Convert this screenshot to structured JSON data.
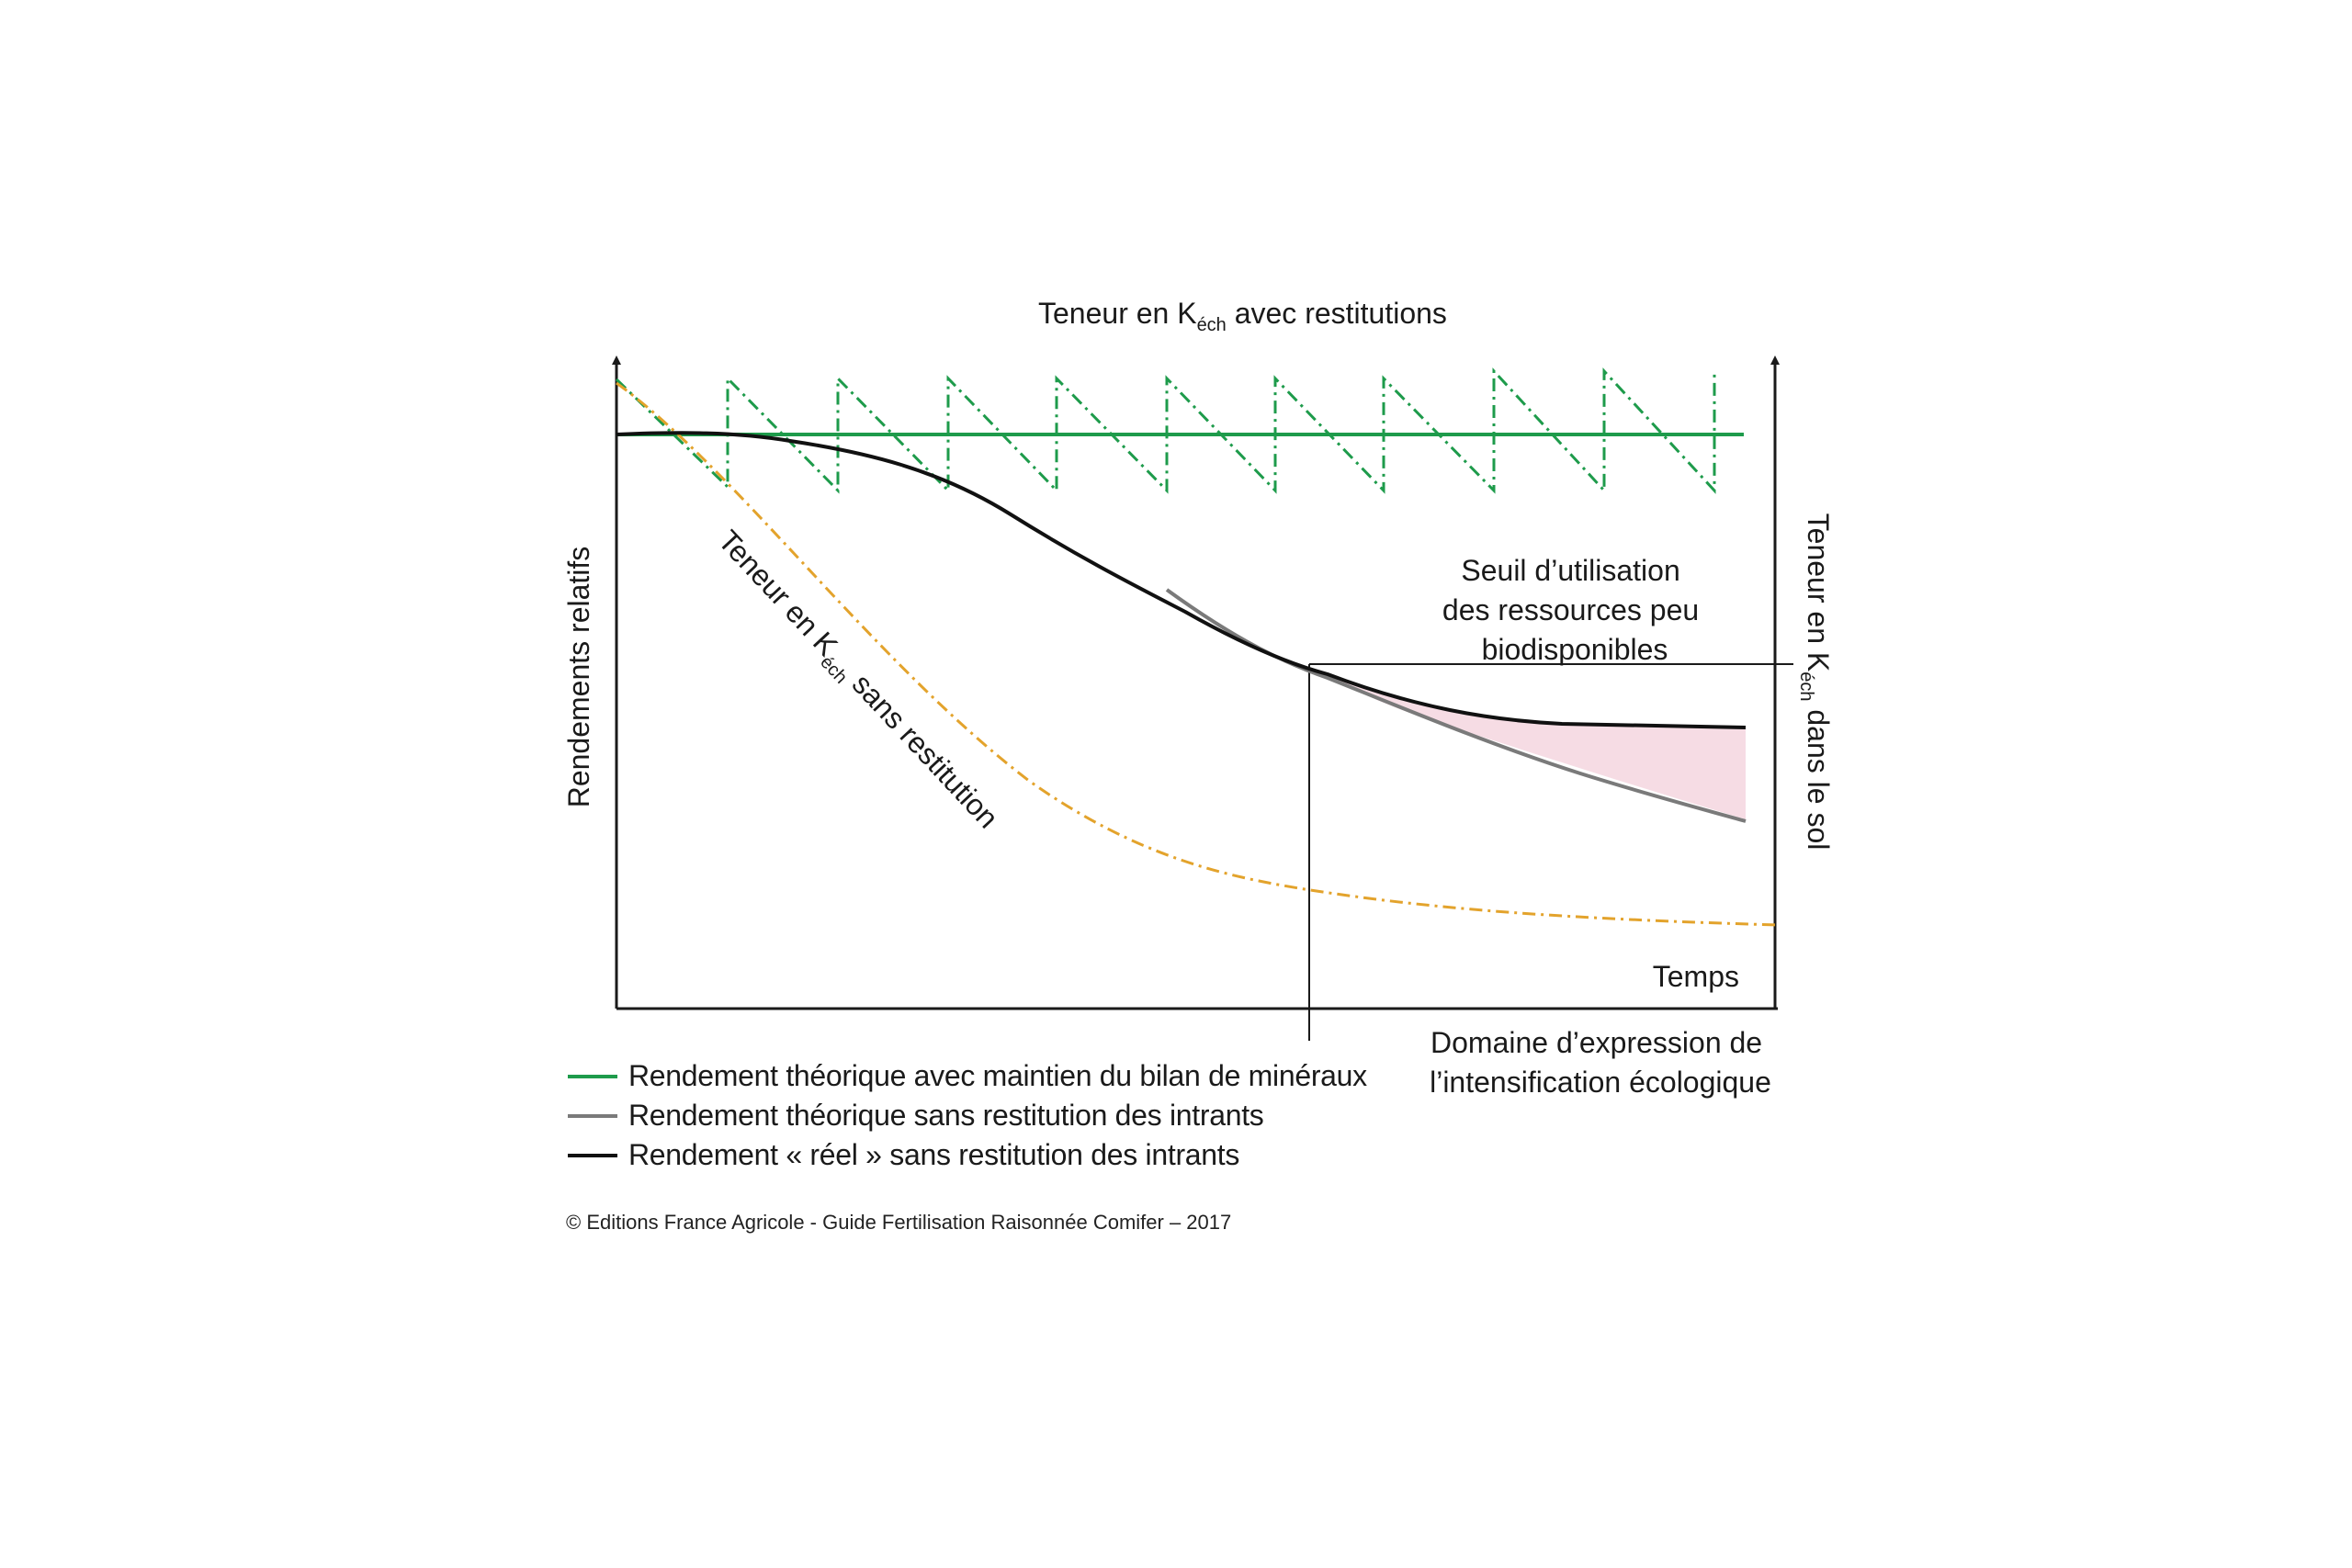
{
  "diagram": {
    "top_label_pre": "Teneur en K",
    "top_label_sub": "éch",
    "top_label_post": " avec restitutions",
    "left_axis_label": "Rendements relatifs",
    "right_axis_pre": "Teneur en K",
    "right_axis_sub": "éch",
    "right_axis_post": " dans le sol",
    "diag_pre": "Teneur en K",
    "diag_sub": "éch",
    "diag_post": " sans restitution",
    "x_axis_label": "Temps",
    "threshold_lines": [
      "Seuil d’utilisation",
      "des ressources peu",
      "biodisponibles"
    ],
    "domain_lines": [
      "Domaine d’expression de",
      "l’intensification écologique"
    ]
  },
  "legend": [
    {
      "label": "Rendement théorique avec maintien du bilan de minéraux",
      "color": "#1e9b4b"
    },
    {
      "label": "Rendement théorique sans restitution des intrants",
      "color": "#7a7a7a"
    },
    {
      "label": "Rendement « réel » sans restitution des intrants",
      "color": "#111111"
    }
  ],
  "colors": {
    "orange_dashdot": "#e3a32c",
    "green_dashdot": "#1e9b4b",
    "gap_fill": "#f6dce4"
  },
  "copyright": "© Editions France Agricole - Guide Fertilisation Raisonnée Comifer – 2017"
}
